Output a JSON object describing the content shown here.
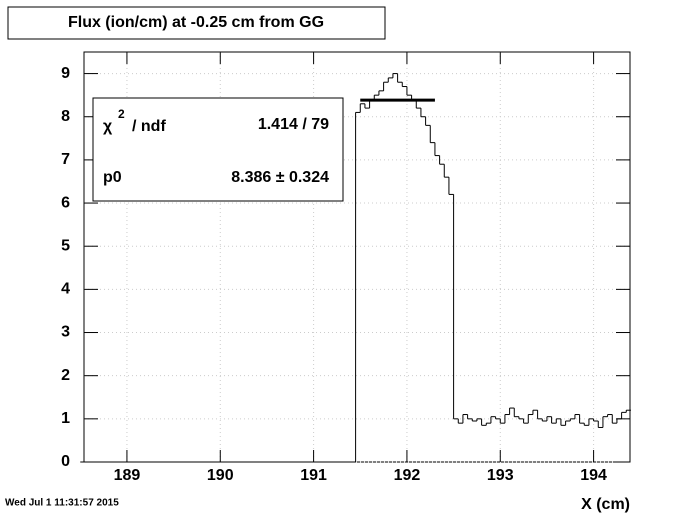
{
  "chart_data": {
    "type": "histogram",
    "title": "Flux (ion/cm) at -0.25 cm from GG",
    "x_label": "X (cm)",
    "timestamp": "Wed Jul  1 11:31:57 2015",
    "bins": [
      188.5,
      191.45,
      191.5,
      191.55,
      191.6,
      191.65,
      191.7,
      191.75,
      191.8,
      191.85,
      191.9,
      191.95,
      192.0,
      192.05,
      192.1,
      192.15,
      192.2,
      192.25,
      192.3,
      192.35,
      192.4,
      192.45,
      192.5,
      192.55,
      192.6,
      192.65,
      192.7,
      192.75,
      192.8,
      192.85,
      192.9,
      192.95,
      193.0,
      193.05,
      193.1,
      193.15,
      193.2,
      193.25,
      193.3,
      193.35,
      193.4,
      193.45,
      193.5,
      193.55,
      193.6,
      193.65,
      193.7,
      193.75,
      193.8,
      193.85,
      193.9,
      193.95,
      194.0,
      194.05,
      194.1,
      194.15,
      194.2,
      194.25,
      194.3,
      194.35,
      194.4
    ],
    "values": [
      0,
      8.1,
      8.3,
      8.2,
      8.4,
      8.5,
      8.6,
      8.8,
      8.9,
      9.0,
      8.8,
      8.7,
      8.5,
      8.4,
      8.2,
      8.0,
      7.8,
      7.4,
      7.1,
      6.9,
      6.6,
      6.2,
      1.0,
      0.9,
      1.1,
      1.0,
      0.95,
      1.0,
      0.85,
      0.9,
      1.05,
      1.0,
      0.9,
      1.1,
      1.25,
      1.05,
      1.0,
      0.9,
      1.1,
      1.2,
      1.0,
      0.95,
      1.05,
      0.9,
      1.0,
      0.85,
      0.95,
      1.0,
      1.1,
      0.9,
      0.85,
      1.0,
      0.95,
      0.8,
      1.05,
      1.1,
      0.9,
      1.0,
      1.15,
      1.2
    ],
    "color": "#000000",
    "fit": {
      "value": 8.386,
      "xrange": [
        191.5,
        192.3
      ],
      "color": "#000000"
    },
    "stats": {
      "chi_symbol": "χ",
      "chi_power": "2",
      "ndf_text": "/ ndf",
      "chi2_ndf": "1.414 / 79",
      "param_name": "p0",
      "param_value": "8.386 ± 0.324"
    },
    "xlim": [
      188.54,
      194.39
    ],
    "ylim": [
      0,
      9.5
    ],
    "xticks": [
      189,
      190,
      191,
      192,
      193,
      194
    ],
    "yticks": [
      0,
      1,
      2,
      3,
      4,
      5,
      6,
      7,
      8,
      9
    ],
    "grid": true
  }
}
